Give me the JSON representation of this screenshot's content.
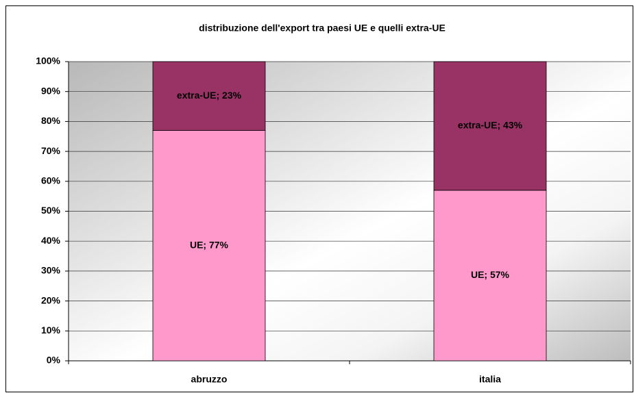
{
  "chart_data": {
    "type": "stacked_bar",
    "title": "distribuzione dell'export tra paesi UE e quelli extra-UE",
    "categories": [
      "abruzzo",
      "italia"
    ],
    "series": [
      {
        "name": "UE",
        "color": "#ff99cc",
        "values": [
          77,
          57
        ],
        "value_labels": [
          "UE; 77%",
          "UE; 57%"
        ]
      },
      {
        "name": "extra-UE",
        "color": "#993366",
        "values": [
          23,
          43
        ],
        "value_labels": [
          "extra-UE; 23%",
          "extra-UE; 43%"
        ]
      }
    ],
    "ylim": [
      0,
      100
    ],
    "yticks": [
      {
        "value": 0,
        "label": "0%"
      },
      {
        "value": 10,
        "label": "10%"
      },
      {
        "value": 20,
        "label": "20%"
      },
      {
        "value": 30,
        "label": "30%"
      },
      {
        "value": 40,
        "label": "40%"
      },
      {
        "value": 50,
        "label": "50%"
      },
      {
        "value": 60,
        "label": "60%"
      },
      {
        "value": 70,
        "label": "70%"
      },
      {
        "value": 80,
        "label": "80%"
      },
      {
        "value": 90,
        "label": "90%"
      },
      {
        "value": 100,
        "label": "100%"
      }
    ],
    "grid": true
  }
}
